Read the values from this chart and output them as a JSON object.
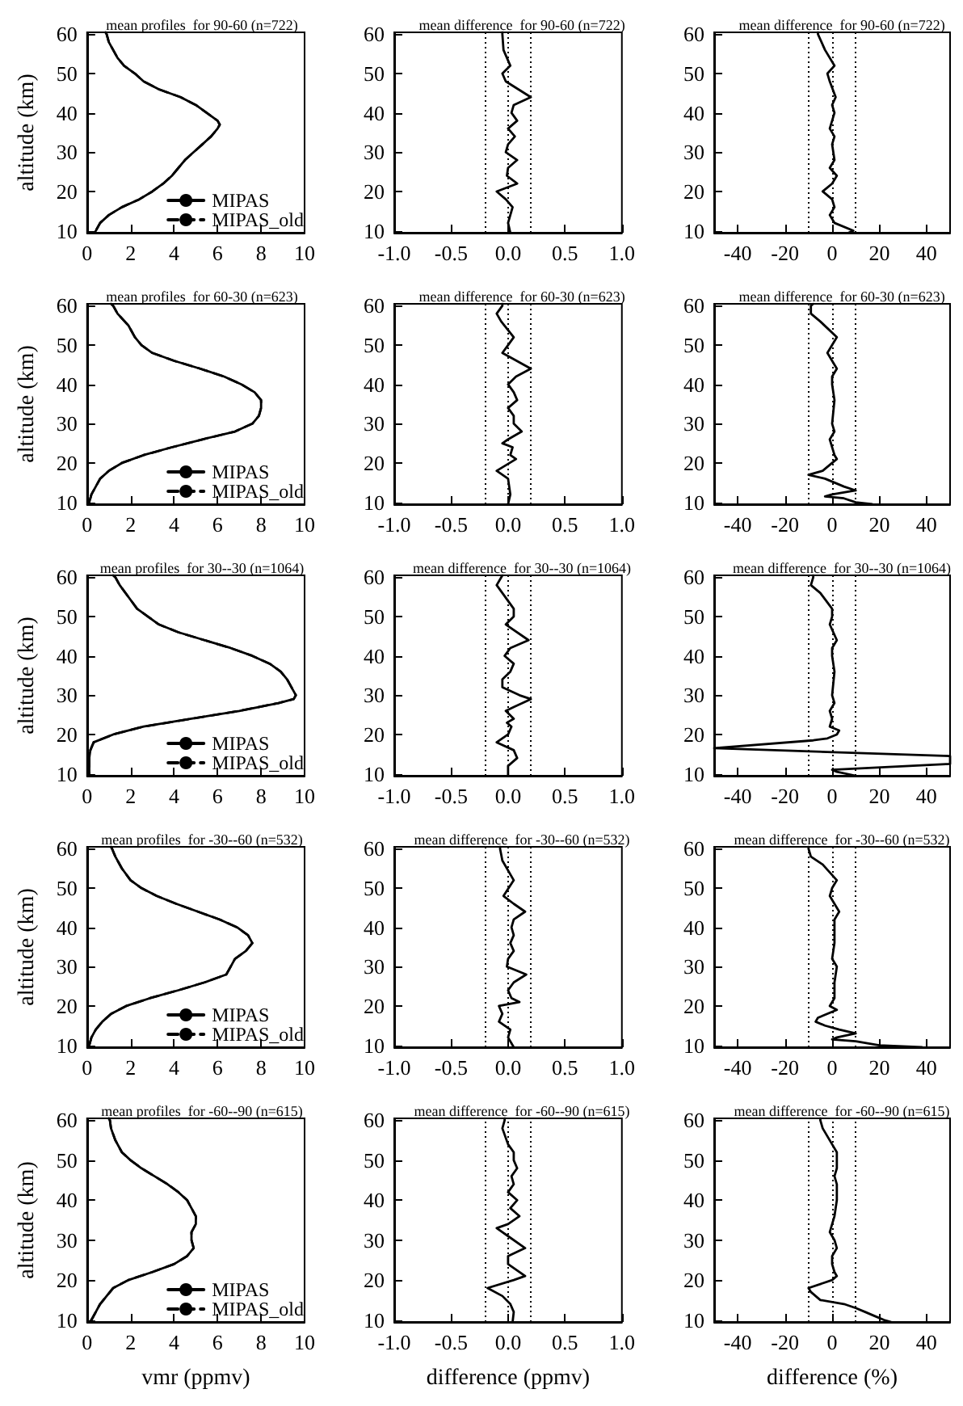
{
  "chart_data": [
    {
      "type": "line",
      "title": "mean profiles  for 90-60 (n=722)",
      "ylabel": "altitude (km)",
      "xlim": [
        0,
        10
      ],
      "xticks": [
        0,
        2,
        4,
        6,
        8,
        10
      ],
      "ylim": [
        9.5,
        60.5
      ],
      "yticks": [
        10,
        20,
        30,
        40,
        50,
        60
      ],
      "legend": "bottom right",
      "series": [
        {
          "name": "MIPAS",
          "color": "#000000",
          "line_style": "solid",
          "x": [
            0.85,
            0.9,
            1.0,
            1.2,
            1.4,
            1.7,
            2.2,
            2.6,
            3.3,
            4.3,
            5.0,
            5.5,
            6.0,
            6.1,
            6.0,
            5.7,
            5.3,
            4.9,
            4.5,
            4.2,
            3.9,
            3.5,
            3.0,
            2.4,
            1.6,
            1.0,
            0.6,
            0.4,
            0.35
          ],
          "values": [
            60.5,
            60,
            58,
            56,
            54,
            52,
            50,
            48,
            46,
            44,
            42,
            40,
            38,
            37,
            36,
            34,
            32,
            30,
            28,
            26,
            24,
            22,
            20,
            18,
            16,
            14,
            12,
            10,
            9.5
          ]
        },
        {
          "name": "MIPAS_old",
          "color": "#000000",
          "line_style": "dashed",
          "x": [
            0.85,
            0.9,
            1.0,
            1.2,
            1.4,
            1.7,
            2.2,
            2.6,
            3.3,
            4.3,
            5.0,
            5.5,
            6.0,
            6.1,
            6.0,
            5.7,
            5.3,
            4.9,
            4.5,
            4.2,
            3.9,
            3.5,
            3.0,
            2.4,
            1.6,
            1.0,
            0.6,
            0.4,
            0.35
          ],
          "values": [
            60.5,
            60,
            58,
            56,
            54,
            52,
            50,
            48,
            46,
            44,
            42,
            40,
            38,
            37,
            36,
            34,
            32,
            30,
            28,
            26,
            24,
            22,
            20,
            18,
            16,
            14,
            12,
            10,
            9.5
          ]
        }
      ]
    },
    {
      "type": "line",
      "title": "mean difference  for 90-60 (n=722)",
      "xlim": [
        -1,
        1
      ],
      "xticks": [
        {
          "value": -1,
          "label": "-1.0"
        },
        {
          "value": -0.5,
          "label": "-0.5"
        },
        {
          "value": 0,
          "label": "0.0"
        },
        {
          "value": 0.5,
          "label": "0.5"
        },
        {
          "value": 1,
          "label": "1.0"
        }
      ],
      "ylim": [
        9.5,
        60.5
      ],
      "yticks": [
        10,
        20,
        30,
        40,
        50,
        60
      ],
      "ref_lines": [
        {
          "axis": "x",
          "value": -0.2,
          "color": "#000000",
          "line_style": "dotted"
        },
        {
          "axis": "x",
          "value": 0,
          "color": "#000000",
          "line_style": "dotted"
        },
        {
          "axis": "x",
          "value": 0.2,
          "color": "#000000",
          "line_style": "dotted"
        }
      ],
      "series": [
        {
          "color": "#000000",
          "x": [
            -0.05,
            -0.05,
            -0.04,
            0.02,
            -0.05,
            -0.02,
            0.2,
            0.05,
            0.03,
            0.08,
            0.0,
            0.06,
            0.0,
            -0.02,
            0.08,
            0.0,
            -0.01,
            0.08,
            -0.1,
            -0.02,
            0.04,
            0.0,
            0.02
          ],
          "values": [
            60.5,
            60,
            56,
            52,
            50,
            48,
            44,
            42,
            40,
            38,
            36,
            34,
            32,
            30,
            28,
            26,
            24,
            22,
            20,
            18,
            16,
            12,
            9.5
          ]
        }
      ]
    },
    {
      "type": "line",
      "title": "mean difference  for 90-60 (n=722)",
      "xlim": [
        -50,
        50
      ],
      "xticks": [
        -40,
        -20,
        0,
        20,
        40
      ],
      "ylim": [
        9.5,
        60.5
      ],
      "yticks": [
        10,
        20,
        30,
        40,
        50,
        60
      ],
      "ref_lines": [
        {
          "axis": "x",
          "value": -10,
          "color": "#000000",
          "line_style": "dotted"
        },
        {
          "axis": "x",
          "value": 0,
          "color": "#000000",
          "line_style": "dotted"
        },
        {
          "axis": "x",
          "value": 10,
          "color": "#000000",
          "line_style": "dotted"
        }
      ],
      "series": [
        {
          "color": "#000000",
          "x": [
            -6,
            -6,
            -3,
            1,
            -2,
            -1,
            1.5,
            0,
            1,
            -1,
            1,
            0,
            1,
            -1,
            2,
            0,
            -4,
            0,
            1,
            -1,
            1,
            9,
            7
          ],
          "values": [
            60.5,
            60,
            56,
            52,
            50,
            48,
            44,
            42,
            40,
            36,
            34,
            32,
            28,
            26,
            24,
            22,
            20,
            18,
            16,
            14,
            12,
            10,
            9.5
          ]
        }
      ]
    },
    {
      "type": "line",
      "title": "mean profiles  for 60-30 (n=623)",
      "ylabel": "altitude (km)",
      "xlim": [
        0,
        10
      ],
      "xticks": [
        0,
        2,
        4,
        6,
        8,
        10
      ],
      "ylim": [
        9.5,
        60.5
      ],
      "yticks": [
        10,
        20,
        30,
        40,
        50,
        60
      ],
      "legend": "bottom right",
      "series": [
        {
          "name": "MIPAS",
          "color": "#000000",
          "line_style": "solid",
          "x": [
            1.1,
            1.2,
            1.4,
            1.9,
            2.2,
            2.5,
            3.0,
            4.0,
            5.2,
            6.3,
            7.1,
            7.7,
            8.0,
            8.0,
            7.9,
            7.6,
            6.8,
            5.3,
            3.9,
            2.6,
            1.6,
            1.0,
            0.6,
            0.4,
            0.2,
            0.1,
            0.05
          ],
          "values": [
            60.5,
            60,
            58,
            55,
            52,
            50,
            48,
            46,
            44,
            42,
            40,
            38,
            36,
            34,
            32,
            30,
            28,
            26,
            24,
            22,
            20,
            18,
            16,
            14,
            12,
            10,
            9.5
          ]
        },
        {
          "name": "MIPAS_old",
          "color": "#000000",
          "line_style": "dashed",
          "x": [
            1.1,
            1.2,
            1.4,
            1.9,
            2.2,
            2.5,
            3.0,
            4.0,
            5.2,
            6.3,
            7.1,
            7.7,
            8.0,
            8.0,
            7.9,
            7.6,
            6.8,
            5.3,
            3.9,
            2.6,
            1.6,
            1.0,
            0.6,
            0.4,
            0.2,
            0.1,
            0.05
          ],
          "values": [
            60.5,
            60,
            58,
            55,
            52,
            50,
            48,
            46,
            44,
            42,
            40,
            38,
            36,
            34,
            32,
            30,
            28,
            26,
            24,
            22,
            20,
            18,
            16,
            14,
            12,
            10,
            9.5
          ]
        }
      ]
    },
    {
      "type": "line",
      "title": "mean difference  for 60-30 (n=623)",
      "xlim": [
        -1,
        1
      ],
      "xticks": [
        {
          "value": -1,
          "label": "-1.0"
        },
        {
          "value": -0.5,
          "label": "-0.5"
        },
        {
          "value": 0,
          "label": "0.0"
        },
        {
          "value": 0.5,
          "label": "0.5"
        },
        {
          "value": 1,
          "label": "1.0"
        }
      ],
      "ylim": [
        9.5,
        60.5
      ],
      "yticks": [
        10,
        20,
        30,
        40,
        50,
        60
      ],
      "ref_lines": [
        {
          "axis": "x",
          "value": -0.2,
          "color": "#000000",
          "line_style": "dotted"
        },
        {
          "axis": "x",
          "value": 0,
          "color": "#000000",
          "line_style": "dotted"
        },
        {
          "axis": "x",
          "value": 0.2,
          "color": "#000000",
          "line_style": "dotted"
        }
      ],
      "series": [
        {
          "color": "#000000",
          "x": [
            -0.05,
            -0.05,
            -0.1,
            -0.06,
            0.05,
            0.0,
            -0.05,
            0.2,
            0.07,
            0.0,
            0.05,
            0.08,
            0.0,
            0.05,
            0.05,
            0.12,
            0.0,
            -0.05,
            0.04,
            0.02,
            0.07,
            -0.1,
            0.0,
            0.02,
            0.0
          ],
          "values": [
            60.5,
            60,
            58,
            56,
            52,
            50,
            48,
            44,
            42,
            40,
            38,
            36,
            34,
            32,
            30,
            28,
            26,
            25,
            24,
            22,
            21,
            18,
            16,
            12,
            9.5
          ]
        }
      ]
    },
    {
      "type": "line",
      "title": "mean difference  for 60-30 (n=623)",
      "xlim": [
        -50,
        50
      ],
      "xticks": [
        -40,
        -20,
        0,
        20,
        40
      ],
      "ylim": [
        9.5,
        60.5
      ],
      "yticks": [
        10,
        20,
        30,
        40,
        50,
        60
      ],
      "ref_lines": [
        {
          "axis": "x",
          "value": -10,
          "color": "#000000",
          "line_style": "dotted"
        },
        {
          "axis": "x",
          "value": 0,
          "color": "#000000",
          "line_style": "dotted"
        },
        {
          "axis": "x",
          "value": 10,
          "color": "#000000",
          "line_style": "dotted"
        }
      ],
      "series": [
        {
          "color": "#000000",
          "x": [
            -8,
            -9,
            -9,
            -5,
            2,
            -2,
            2,
            0,
            0,
            1,
            0,
            1,
            -1,
            1,
            2,
            0,
            -4,
            -10,
            -3,
            5,
            10,
            0,
            -3,
            5,
            10,
            17
          ],
          "values": [
            60.5,
            60,
            58,
            56,
            52,
            48,
            44,
            42,
            40,
            36,
            30,
            28,
            26,
            22,
            21,
            20,
            18,
            17,
            16,
            14,
            13,
            12,
            11.5,
            11,
            10,
            9.5
          ]
        }
      ]
    },
    {
      "type": "line",
      "title": "mean profiles  for 30--30 (n=1064)",
      "ylabel": "altitude (km)",
      "xlim": [
        0,
        10
      ],
      "xticks": [
        0,
        2,
        4,
        6,
        8,
        10
      ],
      "ylim": [
        9.5,
        60.5
      ],
      "yticks": [
        10,
        20,
        30,
        40,
        50,
        60
      ],
      "legend": "bottom right",
      "series": [
        {
          "name": "MIPAS",
          "color": "#000000",
          "line_style": "solid",
          "x": [
            1.2,
            1.3,
            1.5,
            1.9,
            2.3,
            2.8,
            3.3,
            4.2,
            5.4,
            6.6,
            7.6,
            8.4,
            8.9,
            9.2,
            9.4,
            9.6,
            9.5,
            8.8,
            7.0,
            4.8,
            2.6,
            1.2,
            0.3,
            0.15,
            0.1,
            0.1,
            0.1,
            0.1
          ],
          "values": [
            60.5,
            60,
            58,
            55,
            52,
            50,
            48,
            46,
            44,
            42,
            40,
            38,
            36,
            34,
            32,
            30,
            29,
            28,
            26,
            24,
            22,
            20,
            18,
            16,
            14,
            12,
            10,
            9.5
          ]
        },
        {
          "name": "MIPAS_old",
          "color": "#000000",
          "line_style": "dashed",
          "x": [
            1.2,
            1.3,
            1.5,
            1.9,
            2.3,
            2.8,
            3.3,
            4.2,
            5.4,
            6.6,
            7.6,
            8.4,
            8.9,
            9.2,
            9.4,
            9.6,
            9.5,
            8.8,
            7.0,
            4.8,
            2.6,
            1.2,
            0.3,
            0.15,
            0.1,
            0.1,
            0.1,
            0.1
          ],
          "values": [
            60.5,
            60,
            58,
            55,
            52,
            50,
            48,
            46,
            44,
            42,
            40,
            38,
            36,
            34,
            32,
            30,
            29,
            28,
            26,
            24,
            22,
            20,
            18,
            16,
            14,
            12,
            10,
            9.5
          ]
        }
      ]
    },
    {
      "type": "line",
      "title": "mean difference  for 30--30 (n=1064)",
      "xlim": [
        -1,
        1
      ],
      "xticks": [
        {
          "value": -1,
          "label": "-1.0"
        },
        {
          "value": -0.5,
          "label": "-0.5"
        },
        {
          "value": 0,
          "label": "0.0"
        },
        {
          "value": 0.5,
          "label": "0.5"
        },
        {
          "value": 1,
          "label": "1.0"
        }
      ],
      "ylim": [
        9.5,
        60.5
      ],
      "yticks": [
        10,
        20,
        30,
        40,
        50,
        60
      ],
      "ref_lines": [
        {
          "axis": "x",
          "value": -0.2,
          "color": "#000000",
          "line_style": "dotted"
        },
        {
          "axis": "x",
          "value": 0,
          "color": "#000000",
          "line_style": "dotted"
        },
        {
          "axis": "x",
          "value": 0.2,
          "color": "#000000",
          "line_style": "dotted"
        }
      ],
      "series": [
        {
          "color": "#000000",
          "x": [
            -0.05,
            -0.06,
            -0.1,
            -0.05,
            0.05,
            0.05,
            -0.02,
            0.18,
            0.02,
            -0.03,
            0.05,
            0.02,
            -0.05,
            -0.05,
            0.1,
            0.2,
            0.05,
            -0.02,
            0.05,
            -0.01,
            0.03,
            0.0,
            -0.1,
            0.05,
            0.08,
            0.0,
            0.0
          ],
          "values": [
            60.5,
            60,
            58,
            56,
            52,
            50,
            48,
            44,
            42,
            40,
            38,
            36,
            34,
            32,
            30,
            29,
            27,
            26,
            24,
            23,
            22,
            20,
            18,
            16,
            14,
            12,
            9.5
          ]
        }
      ]
    },
    {
      "type": "line",
      "title": "mean difference  for 30--30 (n=1064)",
      "xlim": [
        -50,
        50
      ],
      "xticks": [
        -40,
        -20,
        0,
        20,
        40
      ],
      "ylim": [
        9.5,
        60.5
      ],
      "yticks": [
        10,
        20,
        30,
        40,
        50,
        60
      ],
      "ref_lines": [
        {
          "axis": "x",
          "value": -10,
          "color": "#000000",
          "line_style": "dotted"
        },
        {
          "axis": "x",
          "value": 0,
          "color": "#000000",
          "line_style": "dotted"
        },
        {
          "axis": "x",
          "value": 10,
          "color": "#000000",
          "line_style": "dotted"
        }
      ],
      "series": [
        {
          "color": "#000000",
          "x": [
            -8,
            -8,
            -9,
            -5,
            0,
            0,
            -1,
            2,
            0,
            0,
            1,
            0,
            1,
            -1,
            0,
            -1,
            3,
            2,
            -2,
            -8,
            -50,
            50,
            50,
            0,
            2,
            10
          ],
          "values": [
            60.5,
            60,
            58,
            56,
            52,
            50,
            48,
            44,
            42,
            40,
            36,
            30,
            28,
            26,
            24,
            22,
            21,
            20,
            19,
            18.5,
            16.5,
            14.5,
            12.5,
            11,
            10.5,
            9.5
          ]
        }
      ]
    },
    {
      "type": "line",
      "title": "mean profiles  for -30--60 (n=532)",
      "ylabel": "altitude (km)",
      "xlim": [
        0,
        10
      ],
      "xticks": [
        0,
        2,
        4,
        6,
        8,
        10
      ],
      "ylim": [
        9.5,
        60.5
      ],
      "yticks": [
        10,
        20,
        30,
        40,
        50,
        60
      ],
      "legend": "bottom right",
      "series": [
        {
          "name": "MIPAS",
          "color": "#000000",
          "line_style": "solid",
          "x": [
            1.1,
            1.15,
            1.3,
            1.6,
            2.0,
            2.5,
            3.2,
            4.1,
            5.1,
            6.1,
            6.9,
            7.4,
            7.6,
            7.3,
            6.8,
            6.6,
            6.4,
            5.4,
            4.2,
            2.9,
            1.8,
            1.1,
            0.7,
            0.4,
            0.2,
            0.1,
            0.05
          ],
          "values": [
            60.5,
            60,
            58,
            55,
            52,
            50,
            48,
            46,
            44,
            42,
            40,
            38,
            36,
            34,
            32,
            30,
            28,
            26,
            24,
            22,
            20,
            18,
            16,
            14,
            12,
            10,
            9.5
          ]
        },
        {
          "name": "MIPAS_old",
          "color": "#000000",
          "line_style": "dashed",
          "x": [
            1.1,
            1.15,
            1.3,
            1.6,
            2.0,
            2.5,
            3.2,
            4.1,
            5.1,
            6.1,
            6.9,
            7.4,
            7.6,
            7.3,
            6.8,
            6.6,
            6.4,
            5.4,
            4.2,
            2.9,
            1.8,
            1.1,
            0.7,
            0.4,
            0.2,
            0.1,
            0.05
          ],
          "values": [
            60.5,
            60,
            58,
            55,
            52,
            50,
            48,
            46,
            44,
            42,
            40,
            38,
            36,
            34,
            32,
            30,
            28,
            26,
            24,
            22,
            20,
            18,
            16,
            14,
            12,
            10,
            9.5
          ]
        }
      ]
    },
    {
      "type": "line",
      "title": "mean difference  for -30--60 (n=532)",
      "xlim": [
        -1,
        1
      ],
      "xticks": [
        {
          "value": -1,
          "label": "-1.0"
        },
        {
          "value": -0.5,
          "label": "-0.5"
        },
        {
          "value": 0,
          "label": "0.0"
        },
        {
          "value": 0.5,
          "label": "0.5"
        },
        {
          "value": 1,
          "label": "1.0"
        }
      ],
      "ylim": [
        9.5,
        60.5
      ],
      "yticks": [
        10,
        20,
        30,
        40,
        50,
        60
      ],
      "ref_lines": [
        {
          "axis": "x",
          "value": -0.2,
          "color": "#000000",
          "line_style": "dotted"
        },
        {
          "axis": "x",
          "value": 0,
          "color": "#000000",
          "line_style": "dotted"
        },
        {
          "axis": "x",
          "value": 0.2,
          "color": "#000000",
          "line_style": "dotted"
        }
      ],
      "series": [
        {
          "color": "#000000",
          "x": [
            -0.07,
            -0.07,
            -0.05,
            0.05,
            -0.04,
            0.05,
            0.15,
            0.05,
            0.03,
            0.05,
            0.02,
            0.05,
            0.0,
            -0.01,
            0.16,
            0.05,
            0.0,
            0.03,
            0.1,
            -0.08,
            -0.05,
            -0.08,
            0.02,
            0.0,
            0.05
          ],
          "values": [
            60.5,
            60,
            57,
            52,
            48,
            46,
            44,
            42,
            40,
            38,
            36,
            34,
            32,
            30,
            28,
            26,
            24,
            22,
            21,
            20,
            18,
            16,
            14,
            12,
            9.5
          ]
        }
      ]
    },
    {
      "type": "line",
      "title": "mean difference  for -30--60 (n=532)",
      "xlim": [
        -50,
        50
      ],
      "xticks": [
        -40,
        -20,
        0,
        20,
        40
      ],
      "ylim": [
        9.5,
        60.5
      ],
      "yticks": [
        10,
        20,
        30,
        40,
        50,
        60
      ],
      "ref_lines": [
        {
          "axis": "x",
          "value": -10,
          "color": "#000000",
          "line_style": "dotted"
        },
        {
          "axis": "x",
          "value": 0,
          "color": "#000000",
          "line_style": "dotted"
        },
        {
          "axis": "x",
          "value": 10,
          "color": "#000000",
          "line_style": "dotted"
        }
      ],
      "series": [
        {
          "color": "#000000",
          "x": [
            -10,
            -10,
            -9,
            -4,
            2,
            0,
            -1,
            3,
            1,
            1,
            1,
            0,
            2,
            1,
            1,
            -1,
            2,
            -6,
            -7,
            -3,
            3,
            10,
            2,
            0,
            10,
            20,
            38
          ],
          "values": [
            60.5,
            60,
            58,
            56,
            52,
            50,
            48,
            44,
            42,
            40,
            36,
            32,
            30,
            26,
            22,
            20,
            19,
            17,
            16,
            15,
            14,
            13,
            12,
            11.5,
            11,
            10,
            9.5
          ]
        }
      ]
    },
    {
      "type": "line",
      "title": "mean profiles  for -60--90 (n=615)",
      "xlabel": "vmr (ppmv)",
      "ylabel": "altitude (km)",
      "xlim": [
        0,
        10
      ],
      "xticks": [
        0,
        2,
        4,
        6,
        8,
        10
      ],
      "ylim": [
        9.5,
        60.5
      ],
      "yticks": [
        10,
        20,
        30,
        40,
        50,
        60
      ],
      "legend": "bottom right",
      "series": [
        {
          "name": "MIPAS",
          "color": "#000000",
          "line_style": "solid",
          "x": [
            1.0,
            1.05,
            1.1,
            1.3,
            1.6,
            2.0,
            2.5,
            3.1,
            3.7,
            4.2,
            4.6,
            4.8,
            5.0,
            5.0,
            4.8,
            4.8,
            4.9,
            4.6,
            4.0,
            3.0,
            1.9,
            1.2,
            0.9,
            0.6,
            0.4,
            0.2,
            0.1
          ],
          "values": [
            60.5,
            60,
            58,
            55,
            52,
            50,
            48,
            46,
            44,
            42,
            40,
            38,
            36,
            34,
            32,
            30,
            28,
            26,
            24,
            22,
            20,
            18,
            16,
            14,
            12,
            10,
            9.5
          ]
        },
        {
          "name": "MIPAS_old",
          "color": "#000000",
          "line_style": "dashed",
          "x": [
            1.0,
            1.05,
            1.1,
            1.3,
            1.6,
            2.0,
            2.5,
            3.1,
            3.7,
            4.2,
            4.6,
            4.8,
            5.0,
            5.0,
            4.8,
            4.8,
            4.9,
            4.6,
            4.0,
            3.0,
            1.9,
            1.2,
            0.9,
            0.6,
            0.4,
            0.2,
            0.1
          ],
          "values": [
            60.5,
            60,
            58,
            55,
            52,
            50,
            48,
            46,
            44,
            42,
            40,
            38,
            36,
            34,
            32,
            30,
            28,
            26,
            24,
            22,
            20,
            18,
            16,
            14,
            12,
            10,
            9.5
          ]
        }
      ]
    },
    {
      "type": "line",
      "title": "mean difference  for -60--90 (n=615)",
      "xlabel": "difference (ppmv)",
      "xlim": [
        -1,
        1
      ],
      "xticks": [
        {
          "value": -1,
          "label": "-1.0"
        },
        {
          "value": -0.5,
          "label": "-0.5"
        },
        {
          "value": 0,
          "label": "0.0"
        },
        {
          "value": 0.5,
          "label": "0.5"
        },
        {
          "value": 1,
          "label": "1.0"
        }
      ],
      "ylim": [
        9.5,
        60.5
      ],
      "yticks": [
        10,
        20,
        30,
        40,
        50,
        60
      ],
      "ref_lines": [
        {
          "axis": "x",
          "value": -0.2,
          "color": "#000000",
          "line_style": "dotted"
        },
        {
          "axis": "x",
          "value": 0,
          "color": "#000000",
          "line_style": "dotted"
        },
        {
          "axis": "x",
          "value": 0.2,
          "color": "#000000",
          "line_style": "dotted"
        }
      ],
      "series": [
        {
          "color": "#000000",
          "x": [
            -0.03,
            -0.03,
            -0.05,
            0.0,
            0.05,
            0.05,
            0.08,
            0.03,
            0.05,
            0.0,
            0.08,
            0.02,
            0.1,
            0.0,
            -0.1,
            0.0,
            0.15,
            0.0,
            0.0,
            0.15,
            0.05,
            -0.18,
            -0.05,
            0.02,
            0.05,
            0.04
          ],
          "values": [
            60.5,
            60,
            58,
            54,
            52,
            50,
            48,
            46,
            44,
            42,
            40,
            38,
            36,
            34,
            33,
            31,
            28,
            26,
            24,
            21,
            20,
            18,
            16,
            14,
            12,
            9.5
          ]
        }
      ]
    },
    {
      "type": "line",
      "title": "mean difference  for -60--90 (n=615)",
      "xlabel": "difference (%)",
      "xlim": [
        -50,
        50
      ],
      "xticks": [
        -40,
        -20,
        0,
        20,
        40
      ],
      "ylim": [
        9.5,
        60.5
      ],
      "yticks": [
        10,
        20,
        30,
        40,
        50,
        60
      ],
      "ref_lines": [
        {
          "axis": "x",
          "value": -10,
          "color": "#000000",
          "line_style": "dotted"
        },
        {
          "axis": "x",
          "value": 0,
          "color": "#000000",
          "line_style": "dotted"
        },
        {
          "axis": "x",
          "value": 10,
          "color": "#000000",
          "line_style": "dotted"
        }
      ],
      "series": [
        {
          "color": "#000000",
          "x": [
            -5,
            -5,
            -4,
            0,
            2,
            2,
            1,
            2,
            2,
            1,
            0,
            -1,
            1,
            2,
            0,
            0,
            1,
            2,
            0,
            -10,
            -9,
            -5,
            5,
            10,
            14,
            18,
            22,
            25
          ],
          "values": [
            60.5,
            60,
            58,
            54,
            52,
            48,
            46,
            44,
            40,
            36,
            34,
            32,
            30,
            28,
            26,
            24,
            22,
            21,
            20,
            18,
            17,
            15,
            14,
            13,
            12,
            11,
            10,
            9.5
          ]
        }
      ]
    }
  ]
}
